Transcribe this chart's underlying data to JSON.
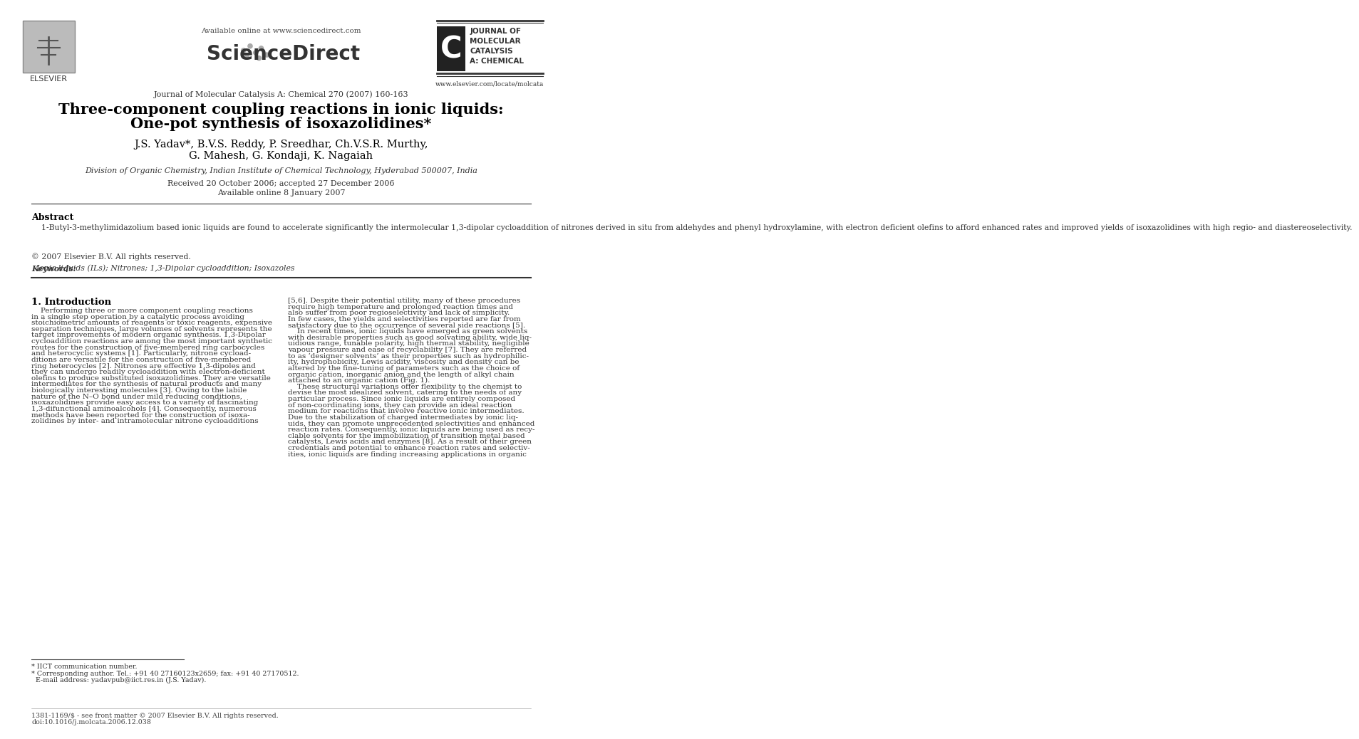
{
  "bg_color": "#ffffff",
  "title_line1": "Three-component coupling reactions in ionic liquids:",
  "title_line2": "One-pot synthesis of isoxazolidines*",
  "authors_line1": "J.S. Yadav*, B.V.S. Reddy, P. Sreedhar, Ch.V.S.R. Murthy,",
  "authors_line2": "G. Mahesh, G. Kondaji, K. Nagaiah",
  "affiliation": "Division of Organic Chemistry, Indian Institute of Chemical Technology, Hyderabad 500007, India",
  "received": "Received 20 October 2006; accepted 27 December 2006",
  "available": "Available online 8 January 2007",
  "journal_header": "Journal of Molecular Catalysis A: Chemical 270 (2007) 160-163",
  "available_online": "Available online at www.sciencedirect.com",
  "sciencedirect": "ScienceDirect",
  "elsevier_text": "ELSEVIER",
  "journal_name_right": "JOURNAL OF\nMOLECULAR\nCATALYSIS\nA: CHEMICAL",
  "website": "www.elsevier.com/locate/molcata",
  "abstract_label": "Abstract",
  "abstract_body": "    1-Butyl-3-methylimidazolium based ionic liquids are found to accelerate significantly the intermolecular 1,3-dipolar cycloaddition of nitrones derived in situ from aldehydes and phenyl hydroxylamine, with electron deficient olefins to afford enhanced rates and improved yields of isoxazolidines with high regio- and diastereoselectivity.",
  "abstract_copy": "© 2007 Elsevier B.V. All rights reserved.",
  "keywords_label": "Keywords:",
  "keywords_text": "  Ionic liquids (ILs); Nitrones; 1,3-Dipolar cycloaddition; Isoxazoles",
  "section1_title": "1. Introduction",
  "intro_left_lines": [
    "    Performing three or more component coupling reactions",
    "in a single step operation by a catalytic process avoiding",
    "stoichiometric amounts of reagents or toxic reagents, expensive",
    "separation techniques, large volumes of solvents represents the",
    "target improvements of modern organic synthesis. 1,3-Dipolar",
    "cycloaddition reactions are among the most important synthetic",
    "routes for the construction of five-membered ring carbocycles",
    "and heterocyclic systems [1]. Particularly, nitrone cycload-",
    "ditions are versatile for the construction of five-membered",
    "ring heterocycles [2]. Nitrones are effective 1,3-dipoles and",
    "they can undergo readily cycloaddition with electron-deficient",
    "olefins to produce substituted isoxazolidines. They are versatile",
    "intermediates for the synthesis of natural products and many",
    "biologically interesting molecules [3]. Owing to the labile",
    "nature of the N–O bond under mild reducing conditions,",
    "isoxazolidines provide easy access to a variety of fascinating",
    "1,3-difunctional aminoalcohols [4]. Consequently, numerous",
    "methods have been reported for the construction of isoxa-",
    "zolidines by inter- and intramolecular nitrone cycloadditions"
  ],
  "intro_right_lines": [
    "[5,6]. Despite their potential utility, many of these procedures",
    "require high temperature and prolonged reaction times and",
    "also suffer from poor regioselectivity and lack of simplicity.",
    "In few cases, the yields and selectivities reported are far from",
    "satisfactory due to the occurrence of several side reactions [5].",
    "    In recent times, ionic liquids have emerged as green solvents",
    "with desirable properties such as good solvating ability, wide liq-",
    "uidious range, tunable polarity, high thermal stability, negligible",
    "vapour pressure and ease of recyclability [7]. They are referred",
    "to as ‘designer solvents’ as their properties such as hydrophilic-",
    "ity, hydrophobicity, Lewis acidity, viscosity and density can be",
    "altered by the fine-tuning of parameters such as the choice of",
    "organic cation, inorganic anion and the length of alkyl chain",
    "attached to an organic cation (Fig. 1).",
    "    These structural variations offer flexibility to the chemist to",
    "devise the most idealized solvent, catering to the needs of any",
    "particular process. Since ionic liquids are entirely composed",
    "of non-coordinating ions, they can provide an ideal reaction",
    "medium for reactions that involve reactive ionic intermediates.",
    "Due to the stabilization of charged intermediates by ionic liq-",
    "uids, they can promote unprecedented selectivities and enhanced",
    "reaction rates. Consequently, ionic liquids are being used as recy-",
    "clable solvents for the immobilization of transition metal based",
    "catalysts, Lewis acids and enzymes [8]. As a result of their green",
    "credentials and potential to enhance reaction rates and selectiv-",
    "ities, ionic liquids are finding increasing applications in organic"
  ],
  "footnote_star": "* IICT communication number.",
  "footnote_corr": "* Corresponding author. Tel.: +91 40 27160123x2659; fax: +91 40 27170512.",
  "footnote_email": "  E-mail address: yadavpub@iict.res.in (J.S. Yadav).",
  "footer1": "1381-1169/$ - see front matter © 2007 Elsevier B.V. All rights reserved.",
  "footer2": "doi:10.1016/j.molcata.2006.12.038"
}
